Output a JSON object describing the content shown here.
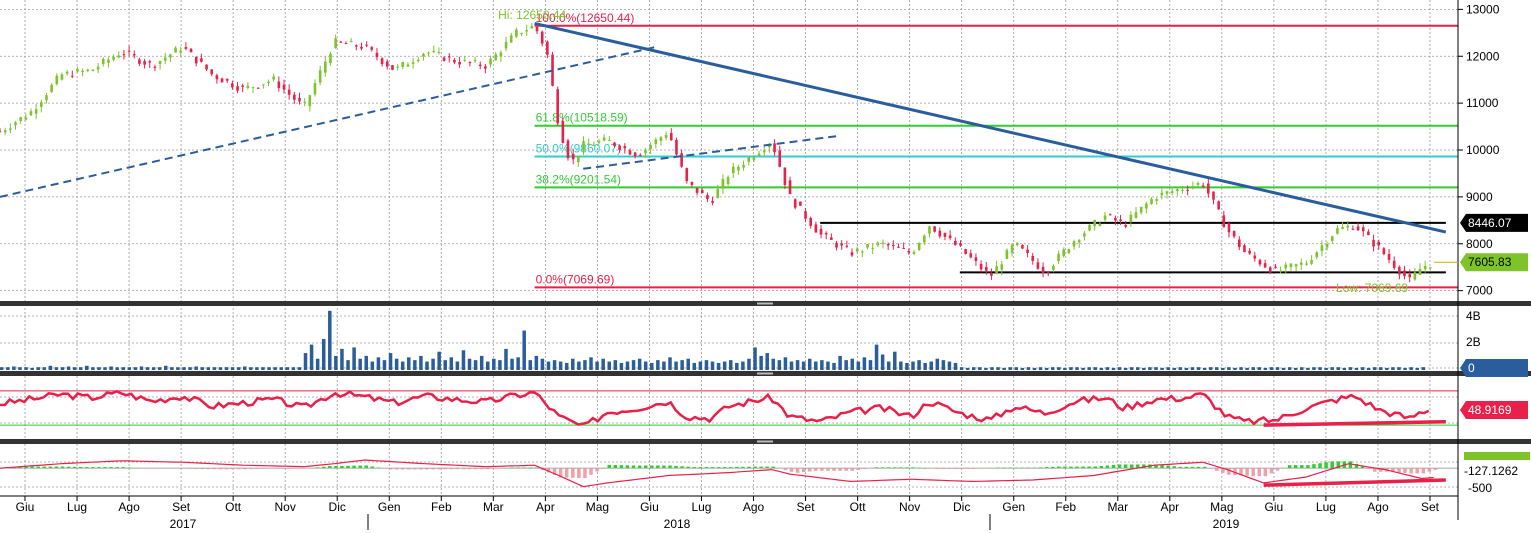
{
  "chart_data": {
    "type": "candlestick",
    "x_months": [
      "Giu",
      "Lug",
      "Ago",
      "Set",
      "Ott",
      "Nov",
      "Dic",
      "Gen",
      "Feb",
      "Mar",
      "Apr",
      "Mag",
      "Giu",
      "Lug",
      "Ago",
      "Set",
      "Ott",
      "Nov",
      "Dic",
      "Gen",
      "Feb",
      "Mar",
      "Apr",
      "Mag",
      "Giu",
      "Lug",
      "Ago",
      "Set"
    ],
    "x_years": [
      "2017",
      "2018",
      "2019"
    ],
    "grid": true,
    "colors": {
      "up": "#7cc42a",
      "down": "#e8204a",
      "trend": "#2a5d9c",
      "fib_red": "#e8204a",
      "fib_green": "#33cc33",
      "fib_cyan": "#33cccc",
      "volume": "#2a5d9c",
      "rsi": "#e8204a",
      "macd_hist": "#33cc33",
      "macd_line": "#e8204a"
    },
    "price_panel": {
      "y_ticks": [
        "13000",
        "12000",
        "11000",
        "10000",
        "9000",
        "8000",
        "7000"
      ],
      "ylim": [
        6800,
        13200
      ],
      "price_path": [
        [
          0,
          10400
        ],
        [
          5,
          10800
        ],
        [
          10,
          11600
        ],
        [
          15,
          11700
        ],
        [
          20,
          12100
        ],
        [
          25,
          11800
        ],
        [
          30,
          12200
        ],
        [
          35,
          11600
        ],
        [
          40,
          11300
        ],
        [
          45,
          11500
        ],
        [
          50,
          10900
        ],
        [
          55,
          12300
        ],
        [
          60,
          12200
        ],
        [
          65,
          11700
        ],
        [
          70,
          12100
        ],
        [
          75,
          11900
        ],
        [
          80,
          11800
        ],
        [
          85,
          12500
        ],
        [
          88,
          12650
        ],
        [
          90,
          12100
        ],
        [
          92,
          10500
        ],
        [
          94,
          9700
        ],
        [
          96,
          10100
        ],
        [
          100,
          10200
        ],
        [
          105,
          9900
        ],
        [
          110,
          10400
        ],
        [
          113,
          9300
        ],
        [
          117,
          8900
        ],
        [
          120,
          9500
        ],
        [
          125,
          10000
        ],
        [
          127,
          10200
        ],
        [
          130,
          9000
        ],
        [
          135,
          8200
        ],
        [
          140,
          7800
        ],
        [
          145,
          8000
        ],
        [
          150,
          7800
        ],
        [
          153,
          8400
        ],
        [
          158,
          7900
        ],
        [
          163,
          7300
        ],
        [
          167,
          8000
        ],
        [
          172,
          7400
        ],
        [
          177,
          8100
        ],
        [
          182,
          8600
        ],
        [
          185,
          8400
        ],
        [
          190,
          9000
        ],
        [
          195,
          9200
        ],
        [
          198,
          9300
        ],
        [
          202,
          8300
        ],
        [
          205,
          7800
        ],
        [
          210,
          7400
        ],
        [
          215,
          7600
        ],
        [
          220,
          8300
        ],
        [
          223,
          8400
        ],
        [
          227,
          7900
        ],
        [
          232,
          7200
        ],
        [
          234,
          7500
        ],
        [
          236,
          7605
        ]
      ],
      "trendlines": [
        {
          "from": [
            0,
            9000
          ],
          "to": [
            108,
            12200
          ],
          "style": "dashed"
        },
        {
          "from": [
            96,
            9600
          ],
          "to": [
            138,
            10300
          ],
          "style": "dashed"
        },
        {
          "from": [
            88,
            12700
          ],
          "to": [
            238,
            8250
          ],
          "style": "solid"
        }
      ],
      "horizontal_levels": [
        {
          "label": "100.0%(12650.44)",
          "value": 12650.44,
          "color": "red"
        },
        {
          "label": "61.8%(10518.59)",
          "value": 10518.59,
          "color": "green"
        },
        {
          "label": "50.0%(9860.07)",
          "value": 9860.07,
          "color": "cyan"
        },
        {
          "label": "38.2%(9201.54)",
          "value": 9201.54,
          "color": "green"
        },
        {
          "label": "0.0%(7069.69)",
          "value": 7069.69,
          "color": "red"
        },
        {
          "label": "",
          "value": 8446.07,
          "color": "black"
        },
        {
          "label": "",
          "value": 7390,
          "color": "black"
        }
      ],
      "hi_label": "Hi: 12650.44",
      "low_label": "Low: 7069.69",
      "last_value": "7605.83",
      "level_value": "8446.07"
    },
    "volume_panel": {
      "y_ticks": [
        "4B",
        "2B",
        "0"
      ],
      "last_value": "0",
      "bars": [
        0.2,
        0.2,
        0.25,
        0.2,
        0.2,
        0.15,
        0.2,
        0.2,
        0.3,
        0.2,
        0.2,
        0.25,
        0.2,
        0.2,
        0.3,
        0.2,
        0.2,
        0.2,
        0.25,
        0.2,
        0.2,
        0.2,
        0.2,
        0.25,
        0.2,
        0.2,
        0.2,
        0.3,
        0.2,
        0.2,
        0.2,
        0.2,
        0.25,
        0.2,
        0.2,
        0.2,
        0.2,
        0.2,
        0.2,
        0.2,
        0.25,
        0.2,
        0.2,
        0.2,
        0.2,
        0.2,
        0.2,
        0.2,
        0.2,
        0.2,
        1.2,
        1.8,
        0.8,
        2.2,
        4.2,
        1.0,
        1.5,
        0.7,
        1.6,
        0.8,
        1.0,
        0.6,
        0.9,
        0.7,
        1.2,
        0.8,
        0.6,
        0.9,
        0.7,
        1.0,
        0.6,
        0.8,
        1.3,
        0.7,
        0.9,
        0.6,
        1.4,
        0.8,
        0.7,
        1.0,
        0.6,
        0.8,
        0.7,
        1.5,
        0.8,
        0.9,
        2.8,
        0.7,
        1.0,
        0.8,
        0.6,
        0.7,
        0.6,
        0.5,
        0.8,
        0.6,
        0.7,
        0.9,
        0.6,
        0.8,
        0.6,
        0.7,
        0.5,
        0.6,
        0.7,
        0.8,
        0.6,
        0.5,
        0.7,
        0.6,
        0.9,
        0.6,
        0.7,
        0.8,
        0.5,
        0.6,
        0.7,
        0.6,
        0.5,
        0.6,
        0.7,
        0.5,
        0.6,
        0.8,
        1.6,
        1.0,
        1.2,
        0.8,
        0.7,
        0.9,
        0.6,
        0.7,
        0.6,
        0.8,
        0.6,
        0.7,
        0.6,
        0.5,
        1.0,
        0.7,
        0.8,
        0.6,
        0.9,
        0.7,
        1.8,
        1.1,
        0.6,
        1.3,
        0.6,
        0.5,
        0.6,
        0.7,
        0.5,
        0.6,
        0.8,
        0.7,
        0.6,
        0.5,
        0.2,
        0.15,
        0.2,
        0.2,
        0.15,
        0.2,
        0.2,
        0.15,
        0.2,
        0.2,
        0.15,
        0.2,
        0.15,
        0.2,
        0.15,
        0.2,
        0.2,
        0.15,
        0.2,
        0.2,
        0.15,
        0.2,
        0.2,
        0.15,
        0.2,
        0.15,
        0.2,
        0.15,
        0.2,
        0.2,
        0.15,
        0.2,
        0.2,
        0.15,
        0.2,
        0.15,
        0.2,
        0.15,
        0.2,
        0.2,
        0.15,
        0.2,
        0.2,
        0.15,
        0.2,
        0.15,
        0.2,
        0.15,
        0.2,
        0.2,
        0.15,
        0.2,
        0.2,
        0.15,
        0.2,
        0.15,
        0.2,
        0.15,
        0.2,
        0.2,
        0.15,
        0.2,
        0.2,
        0.15,
        0.2,
        0.15,
        0.2,
        0.15,
        0.2,
        0.2,
        0.15,
        0.2,
        0.2,
        0.15,
        0.2,
        0.15,
        0.2
      ]
    },
    "rsi_panel": {
      "last_value": "48.9169",
      "upper": 70,
      "lower": 30,
      "path": [
        [
          0,
          55
        ],
        [
          5,
          60
        ],
        [
          10,
          66
        ],
        [
          15,
          62
        ],
        [
          20,
          68
        ],
        [
          25,
          58
        ],
        [
          30,
          64
        ],
        [
          35,
          52
        ],
        [
          40,
          56
        ],
        [
          45,
          60
        ],
        [
          50,
          50
        ],
        [
          55,
          68
        ],
        [
          60,
          63
        ],
        [
          65,
          56
        ],
        [
          70,
          64
        ],
        [
          75,
          60
        ],
        [
          80,
          57
        ],
        [
          85,
          65
        ],
        [
          88,
          68
        ],
        [
          92,
          40
        ],
        [
          96,
          28
        ],
        [
          100,
          45
        ],
        [
          105,
          50
        ],
        [
          110,
          58
        ],
        [
          113,
          40
        ],
        [
          117,
          38
        ],
        [
          120,
          52
        ],
        [
          125,
          60
        ],
        [
          127,
          62
        ],
        [
          130,
          40
        ],
        [
          135,
          34
        ],
        [
          140,
          45
        ],
        [
          145,
          50
        ],
        [
          150,
          40
        ],
        [
          153,
          58
        ],
        [
          158,
          44
        ],
        [
          163,
          36
        ],
        [
          167,
          52
        ],
        [
          172,
          44
        ],
        [
          177,
          58
        ],
        [
          182,
          62
        ],
        [
          185,
          50
        ],
        [
          190,
          60
        ],
        [
          195,
          62
        ],
        [
          198,
          66
        ],
        [
          202,
          40
        ],
        [
          205,
          34
        ],
        [
          210,
          36
        ],
        [
          215,
          50
        ],
        [
          220,
          60
        ],
        [
          223,
          64
        ],
        [
          227,
          48
        ],
        [
          232,
          38
        ],
        [
          234,
          46
        ],
        [
          236,
          48.9
        ]
      ],
      "trendline": {
        "from": [
          208,
          30
        ],
        "to": [
          238,
          34
        ]
      }
    },
    "macd_panel": {
      "y_ticks": [
        "-500"
      ],
      "last_value": "-127.1262",
      "path": [
        [
          0,
          0
        ],
        [
          10,
          60
        ],
        [
          20,
          100
        ],
        [
          30,
          80
        ],
        [
          40,
          40
        ],
        [
          50,
          20
        ],
        [
          55,
          60
        ],
        [
          60,
          110
        ],
        [
          70,
          60
        ],
        [
          80,
          20
        ],
        [
          88,
          40
        ],
        [
          92,
          -100
        ],
        [
          96,
          -250
        ],
        [
          100,
          -200
        ],
        [
          110,
          -100
        ],
        [
          120,
          -60
        ],
        [
          127,
          -20
        ],
        [
          130,
          -80
        ],
        [
          140,
          -180
        ],
        [
          150,
          -150
        ],
        [
          160,
          -180
        ],
        [
          170,
          -160
        ],
        [
          180,
          -100
        ],
        [
          190,
          40
        ],
        [
          198,
          80
        ],
        [
          202,
          -20
        ],
        [
          208,
          -200
        ],
        [
          215,
          -120
        ],
        [
          222,
          60
        ],
        [
          228,
          -20
        ],
        [
          234,
          -140
        ],
        [
          236,
          -127
        ]
      ],
      "trendline": {
        "from": [
          208,
          -230
        ],
        "to": [
          238,
          -160
        ]
      }
    }
  }
}
